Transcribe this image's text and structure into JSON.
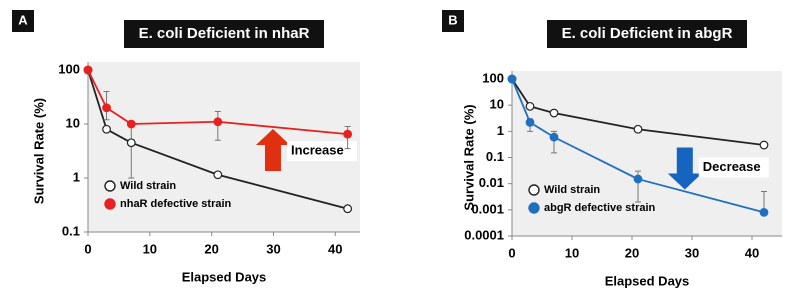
{
  "chart_data": [
    {
      "type": "line",
      "panel": "A",
      "title": "E. coli Deficient in nhaR",
      "x_label": "Elapsed Days",
      "y_label": "Survival Rate (%)",
      "log_y": true,
      "grid": false,
      "xlim": [
        0,
        44
      ],
      "xticks": [
        0,
        10,
        20,
        30,
        40
      ],
      "ylim": [
        0.1,
        100
      ],
      "yticks": [
        0.1,
        1,
        10,
        100
      ],
      "annotation": "Increase",
      "arrow_color": "#e03010",
      "arrow_dir": "up",
      "series": [
        {
          "name": "Wild strain",
          "color": "#222222",
          "marker_fill": "#ffffff",
          "x": [
            0,
            3,
            7,
            21,
            42
          ],
          "values": [
            100,
            8,
            4.5,
            1.15,
            0.27
          ],
          "error_low": [
            null,
            null,
            1,
            null,
            null
          ],
          "error_high": [
            null,
            null,
            10,
            null,
            null
          ]
        },
        {
          "name": "nhaR defective strain",
          "color": "#e82020",
          "marker_fill": "#e82020",
          "x": [
            0,
            3,
            7,
            21,
            42
          ],
          "values": [
            100,
            20,
            10,
            11,
            6.5
          ],
          "error_low": [
            null,
            12,
            null,
            5,
            3.5
          ],
          "error_high": [
            null,
            40,
            null,
            17,
            9
          ]
        }
      ]
    },
    {
      "type": "line",
      "panel": "B",
      "title": "E. coli Deficient in abgR",
      "x_label": "Elapsed Days",
      "y_label": "Survival Rate (%)",
      "log_y": true,
      "grid": false,
      "xlim": [
        0,
        45
      ],
      "xticks": [
        0,
        10,
        20,
        30,
        40
      ],
      "ylim": [
        0.0001,
        100
      ],
      "yticks": [
        0.0001,
        0.001,
        0.01,
        0.1,
        1,
        10,
        100
      ],
      "annotation": "Decrease",
      "arrow_color": "#1565c0",
      "arrow_dir": "down",
      "series": [
        {
          "name": "Wild strain",
          "color": "#222222",
          "marker_fill": "#ffffff",
          "x": [
            0,
            3,
            7,
            21,
            42
          ],
          "values": [
            100,
            9,
            5,
            1.2,
            0.3
          ],
          "error_low": [
            null,
            null,
            null,
            null,
            null
          ],
          "error_high": [
            null,
            null,
            null,
            null,
            null
          ]
        },
        {
          "name": "abgR defective strain",
          "color": "#2070c0",
          "marker_fill": "#2070c0",
          "x": [
            0,
            3,
            7,
            21,
            42
          ],
          "values": [
            100,
            2.2,
            0.6,
            0.015,
            0.0008
          ],
          "error_low": [
            null,
            1,
            0.15,
            0.002,
            null
          ],
          "error_high": [
            null,
            3,
            1,
            0.03,
            0.005
          ]
        }
      ]
    }
  ]
}
